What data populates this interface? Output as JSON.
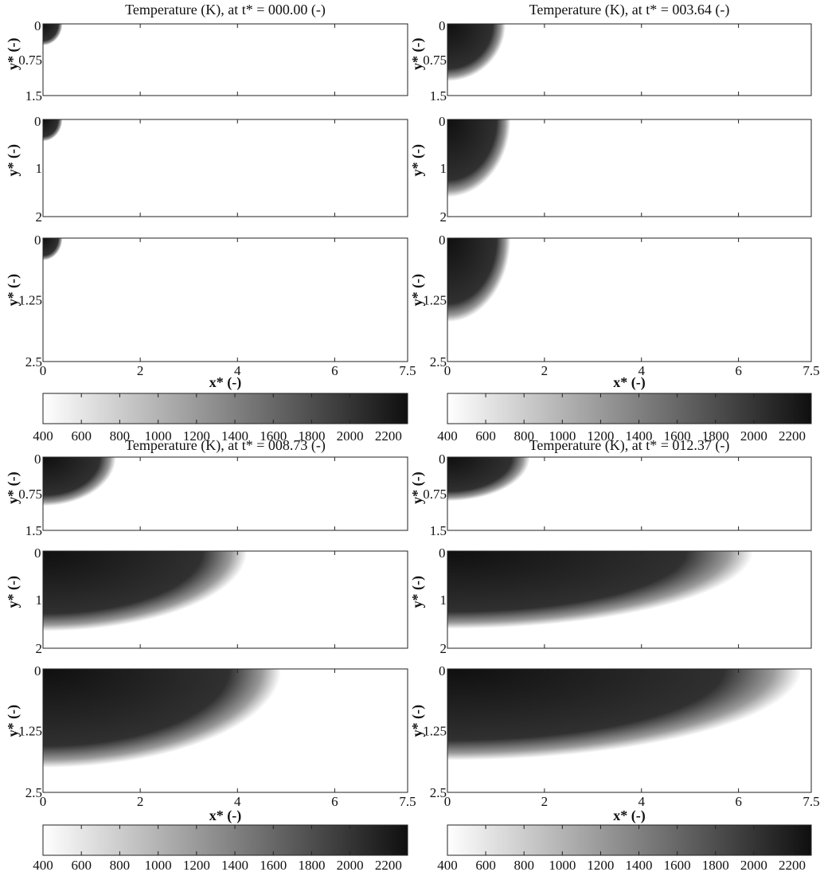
{
  "chart_data": {
    "type": "heatmap",
    "colormap": {
      "low_color": "#ffffff",
      "high_color": "#0f0f0f"
    },
    "colorbar_ticks": [
      "400",
      "600",
      "800",
      "1000",
      "1200",
      "1400",
      "1600",
      "1800",
      "2000",
      "2200"
    ],
    "colorbar_range": [
      400,
      2300
    ],
    "x_ticks": [
      "0",
      "2",
      "4",
      "6",
      "7.5"
    ],
    "xlim": [
      0,
      7.5
    ],
    "xlabel": "x* (-)",
    "ylabel": "y* (-)",
    "domains": [
      {
        "ylim": [
          0,
          1.5
        ],
        "y_ticks": [
          "0",
          "0.75",
          "1.5"
        ]
      },
      {
        "ylim": [
          0,
          2
        ],
        "y_ticks": [
          "0",
          "1",
          "2"
        ]
      },
      {
        "ylim": [
          0,
          2.5
        ],
        "y_ticks": [
          "0",
          "1.25",
          "2.5"
        ]
      }
    ],
    "panels": [
      {
        "title": "Temperature (K), at t* = 000.00 (-)",
        "plots": [
          {
            "front_x": 0.4,
            "front_y": 0.45
          },
          {
            "front_x": 0.4,
            "front_y": 0.45
          },
          {
            "front_x": 0.4,
            "front_y": 0.45
          }
        ]
      },
      {
        "title": "Temperature (K), at t* = 003.64 (-)",
        "plots": [
          {
            "front_x": 1.2,
            "front_y": 1.2
          },
          {
            "front_x": 1.3,
            "front_y": 1.6
          },
          {
            "front_x": 1.3,
            "front_y": 1.7
          }
        ]
      },
      {
        "title": "Temperature (K), at t* = 008.73 (-)",
        "plots": [
          {
            "front_x": 1.5,
            "front_y": 1.0
          },
          {
            "front_x": 4.2,
            "front_y": 1.65
          },
          {
            "front_x": 4.9,
            "front_y": 2.0
          }
        ]
      },
      {
        "title": "Temperature (K), at t* = 012.37 (-)",
        "plots": [
          {
            "front_x": 1.7,
            "front_y": 0.9
          },
          {
            "front_x": 6.3,
            "front_y": 1.6
          },
          {
            "front_x": 7.3,
            "front_y": 1.85
          }
        ]
      }
    ]
  }
}
